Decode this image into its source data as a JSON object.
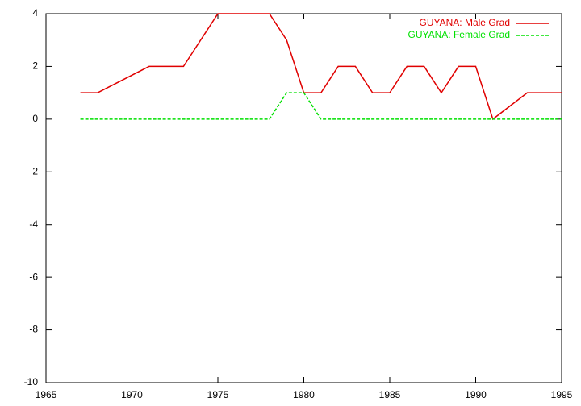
{
  "chart_data": {
    "type": "line",
    "x": [
      1967,
      1968,
      1971,
      1972,
      1973,
      1975,
      1976,
      1977,
      1978,
      1979,
      1980,
      1981,
      1982,
      1983,
      1984,
      1985,
      1986,
      1987,
      1988,
      1989,
      1990,
      1991,
      1993,
      1994,
      1995
    ],
    "series": [
      {
        "name": "GUYANA: Male Grad",
        "color": "#e00000",
        "dash": false,
        "values": [
          1,
          1,
          2,
          2,
          2,
          4,
          4,
          4,
          4,
          3,
          1,
          1,
          2,
          2,
          1,
          1,
          2,
          2,
          1,
          2,
          2,
          0,
          1,
          1,
          1
        ]
      },
      {
        "name": "GUYANA: Female Grad",
        "color": "#00e000",
        "dash": true,
        "values": [
          0,
          0,
          0,
          0,
          0,
          0,
          0,
          0,
          0,
          1,
          1,
          0,
          0,
          0,
          0,
          0,
          0,
          0,
          0,
          0,
          0,
          0,
          0,
          0,
          0
        ]
      }
    ],
    "xlim": [
      1965,
      1995
    ],
    "xticks": [
      1965,
      1970,
      1975,
      1980,
      1985,
      1990,
      1995
    ],
    "ylim": [
      -10,
      4
    ],
    "yticks": [
      -10,
      -8,
      -6,
      -4,
      -2,
      0,
      2,
      4
    ],
    "legend": "top-right"
  }
}
